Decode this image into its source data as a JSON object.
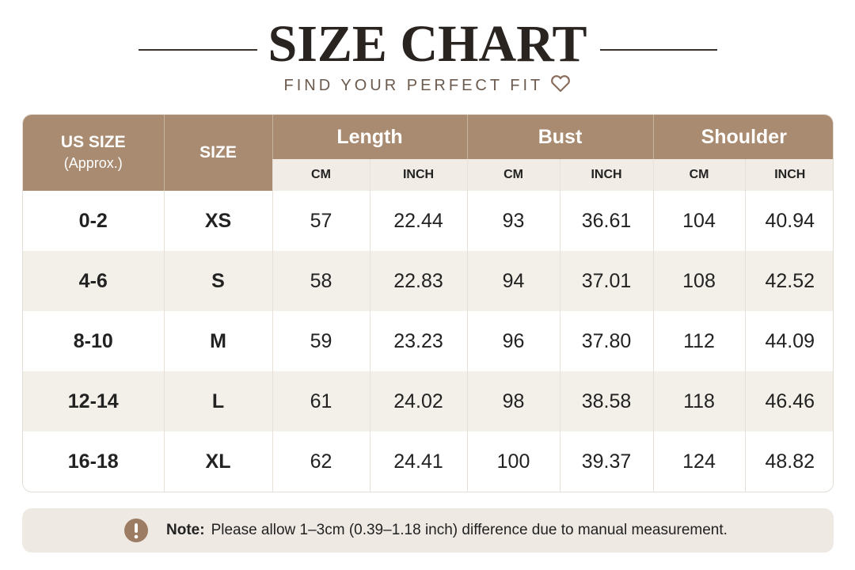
{
  "header": {
    "title": "SIZE CHART",
    "subtitle": "FIND YOUR PERFECT FIT"
  },
  "table": {
    "us_size": "US SIZE",
    "us_size_note": "(Approx.)",
    "size": "SIZE",
    "groups": [
      "Length",
      "Bust",
      "Shoulder"
    ],
    "subheaders": [
      "CM",
      "INCH",
      "CM",
      "INCH",
      "CM",
      "INCH"
    ],
    "rows": [
      [
        "0-2",
        "XS",
        "57",
        "22.44",
        "93",
        "36.61",
        "104",
        "40.94"
      ],
      [
        "4-6",
        "S",
        "58",
        "22.83",
        "94",
        "37.01",
        "108",
        "42.52"
      ],
      [
        "8-10",
        "M",
        "59",
        "23.23",
        "96",
        "37.80",
        "112",
        "44.09"
      ],
      [
        "12-14",
        "L",
        "61",
        "24.02",
        "98",
        "38.58",
        "118",
        "46.46"
      ],
      [
        "16-18",
        "XL",
        "62",
        "24.41",
        "100",
        "39.37",
        "124",
        "48.82"
      ]
    ]
  },
  "note": {
    "label": "Note:",
    "text": "Please allow 1–3cm (0.39–1.18 inch) difference due to manual measurement."
  }
}
